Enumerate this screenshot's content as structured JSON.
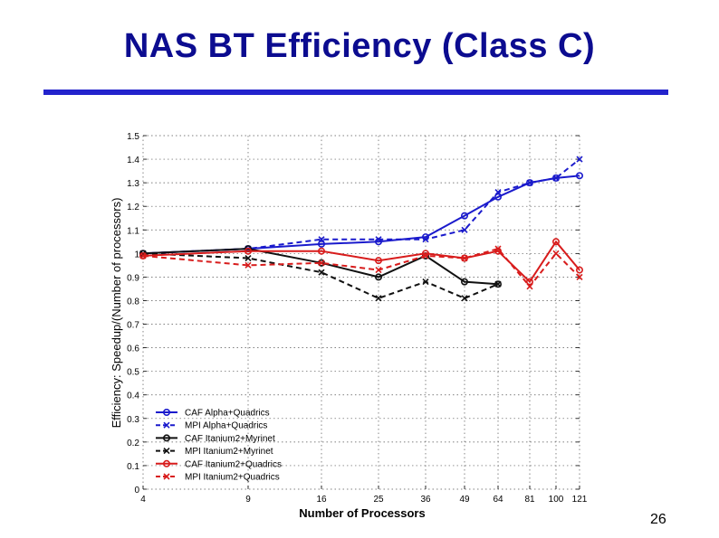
{
  "slide": {
    "title": "NAS BT Efficiency (Class C)",
    "page_number": "26"
  },
  "colors": {
    "title": "#0c0c90",
    "rule": "#2323cc",
    "alpha": "#1a1acc",
    "itanium_myrinet": "#111111",
    "itanium_quadrics": "#d81c1c"
  },
  "chart_data": {
    "type": "line",
    "title": "",
    "xlabel": "Number of Processors",
    "ylabel": "Efficiency: Speedup/(Number of processors)",
    "categories": [
      "4",
      "9",
      "16",
      "25",
      "36",
      "49",
      "64",
      "81",
      "100",
      "121"
    ],
    "ylim": [
      0,
      1.5
    ],
    "yticks": [
      "0",
      "0.1",
      "0.2",
      "0.3",
      "0.4",
      "0.5",
      "0.6",
      "0.7",
      "0.8",
      "0.9",
      "1",
      "1.1",
      "1.2",
      "1.3",
      "1.4",
      "1.5"
    ],
    "grid": true,
    "legend_position": "bottom-left",
    "series": [
      {
        "name": "CAF Alpha+Quadrics",
        "color": "#1a1acc",
        "dash": "solid",
        "marker": "circle",
        "values": [
          1.0,
          1.02,
          1.04,
          1.05,
          1.07,
          1.16,
          1.24,
          1.3,
          1.32,
          1.33
        ]
      },
      {
        "name": "MPI Alpha+Quadrics",
        "color": "#1a1acc",
        "dash": "dashed",
        "marker": "x",
        "values": [
          1.0,
          1.02,
          1.06,
          1.06,
          1.06,
          1.1,
          1.26,
          1.3,
          1.32,
          1.4
        ]
      },
      {
        "name": "CAF Itanium2+Myrinet",
        "color": "#111111",
        "dash": "solid",
        "marker": "circle",
        "values": [
          1.0,
          1.02,
          0.96,
          0.9,
          0.99,
          0.88,
          0.87,
          null,
          null,
          null
        ]
      },
      {
        "name": "MPI Itanium2+Myrinet",
        "color": "#111111",
        "dash": "dashed",
        "marker": "x",
        "values": [
          1.0,
          0.98,
          0.92,
          0.81,
          0.88,
          0.81,
          0.87,
          null,
          null,
          null
        ]
      },
      {
        "name": "CAF Itanium2+Quadrics",
        "color": "#d81c1c",
        "dash": "solid",
        "marker": "circle",
        "values": [
          0.99,
          1.01,
          1.01,
          0.97,
          1.0,
          0.98,
          1.01,
          0.88,
          1.05,
          0.93
        ]
      },
      {
        "name": "MPI Itanium2+Quadrics",
        "color": "#d81c1c",
        "dash": "dashed",
        "marker": "x",
        "values": [
          0.99,
          0.95,
          0.96,
          0.93,
          0.99,
          0.98,
          1.02,
          0.86,
          1.0,
          0.9
        ]
      }
    ]
  }
}
